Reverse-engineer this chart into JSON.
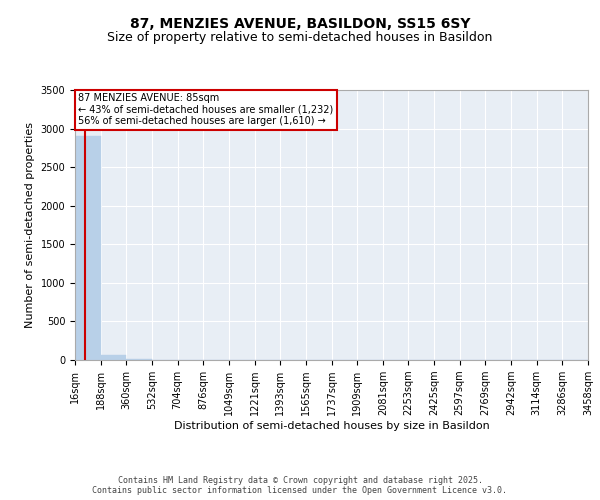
{
  "title": "87, MENZIES AVENUE, BASILDON, SS15 6SY",
  "subtitle": "Size of property relative to semi-detached houses in Basildon",
  "xlabel": "Distribution of semi-detached houses by size in Basildon",
  "ylabel": "Number of semi-detached properties",
  "annotation_title": "87 MENZIES AVENUE: 85sqm",
  "annotation_line2": "← 43% of semi-detached houses are smaller (1,232)",
  "annotation_line3": "56% of semi-detached houses are larger (1,610) →",
  "footer_line1": "Contains HM Land Registry data © Crown copyright and database right 2025.",
  "footer_line2": "Contains public sector information licensed under the Open Government Licence v3.0.",
  "property_sqm": 85,
  "bar_edges": [
    16,
    188,
    360,
    532,
    704,
    876,
    1049,
    1221,
    1393,
    1565,
    1737,
    1909,
    2081,
    2253,
    2425,
    2597,
    2769,
    2942,
    3114,
    3286,
    3458
  ],
  "bar_heights": [
    2900,
    60,
    8,
    4,
    4,
    3,
    2,
    2,
    2,
    1,
    1,
    1,
    1,
    1,
    0,
    1,
    0,
    0,
    0,
    0
  ],
  "bar_color": "#b8d0e8",
  "line_color": "#cc0000",
  "ylim": [
    0,
    3500
  ],
  "yticks": [
    0,
    500,
    1000,
    1500,
    2000,
    2500,
    3000,
    3500
  ],
  "background_color": "#e8eef5",
  "grid_color": "#ffffff",
  "title_fontsize": 10,
  "subtitle_fontsize": 9,
  "axis_label_fontsize": 8,
  "tick_fontsize": 7,
  "footer_fontsize": 6
}
